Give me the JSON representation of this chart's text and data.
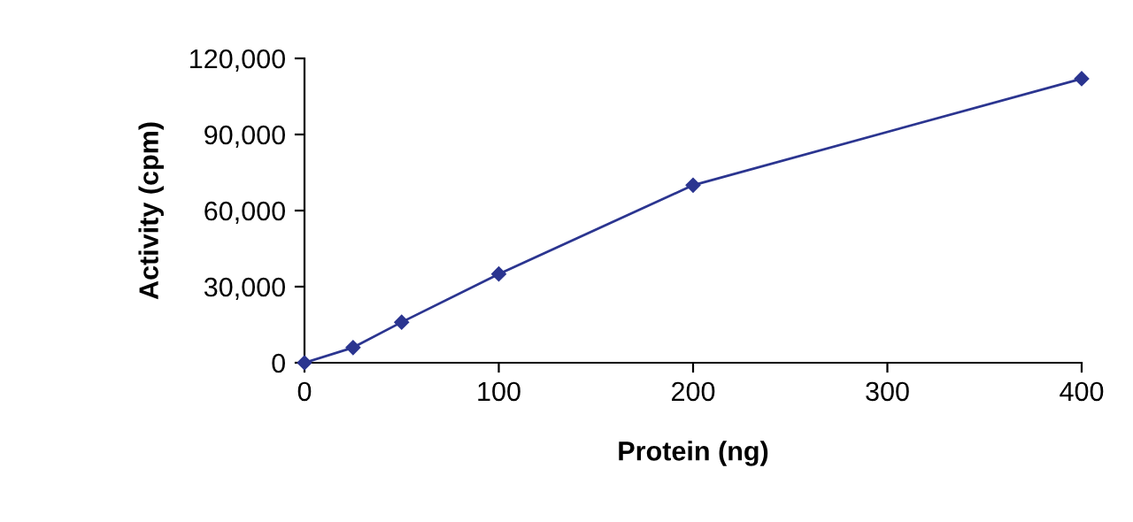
{
  "chart_data": {
    "type": "line",
    "xlabel": "Protein (ng)",
    "ylabel": "Activity (cpm)",
    "x": [
      0,
      25,
      50,
      100,
      200,
      400
    ],
    "series": [
      {
        "color": "#2b3590",
        "values": [
          0,
          6000,
          16000,
          35000,
          70000,
          112000
        ]
      }
    ],
    "xlim": [
      0,
      400
    ],
    "xticks": [
      0,
      100,
      200,
      300,
      400
    ],
    "ylim": [
      0,
      120000
    ],
    "yticks": [
      {
        "value": 0,
        "label": "0"
      },
      {
        "value": 30000,
        "label": "30,000"
      },
      {
        "value": 60000,
        "label": "60,000"
      },
      {
        "value": 90000,
        "label": "90,000"
      },
      {
        "value": 120000,
        "label": "120,000"
      }
    ],
    "marker": "diamond",
    "line_style": "solid",
    "grid": false,
    "legend": false
  }
}
